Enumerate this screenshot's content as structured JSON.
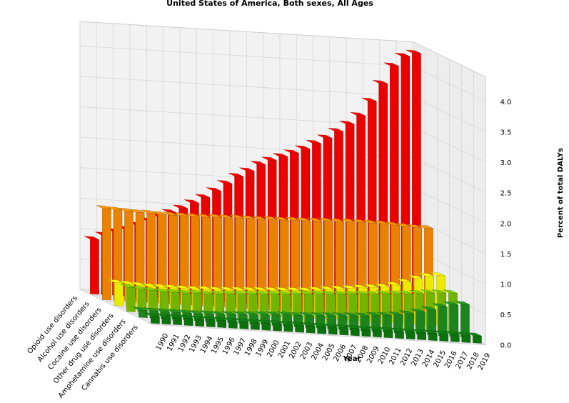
{
  "chart_data": {
    "type": "bar3d",
    "title": "United States of America, Both sexes, All Ages",
    "xlabel": "Year",
    "zlabel": "Percent of total DALYs",
    "zlim": [
      0,
      4.4
    ],
    "zticks": [
      "0.0",
      "0.5",
      "1.0",
      "1.5",
      "2.0",
      "2.5",
      "3.0",
      "3.5",
      "4.0"
    ],
    "categories": [
      "1990",
      "1991",
      "1992",
      "1993",
      "1994",
      "1995",
      "1996",
      "1997",
      "1998",
      "1999",
      "2000",
      "2001",
      "2002",
      "2003",
      "2004",
      "2005",
      "2006",
      "2007",
      "2008",
      "2009",
      "2010",
      "2011",
      "2012",
      "2013",
      "2014",
      "2015",
      "2016",
      "2017",
      "2018",
      "2019"
    ],
    "series": [
      {
        "name": "Opioid use disorders",
        "color": "#ff0000",
        "values": [
          0.9,
          0.98,
          1.05,
          1.1,
          1.18,
          1.26,
          1.34,
          1.42,
          1.5,
          1.6,
          1.7,
          1.82,
          1.95,
          2.08,
          2.18,
          2.3,
          2.38,
          2.45,
          2.52,
          2.6,
          2.7,
          2.8,
          2.92,
          3.05,
          3.2,
          3.45,
          3.75,
          4.05,
          4.22,
          4.28
        ]
      },
      {
        "name": "Alcohol use disorders",
        "color": "#ff8c00",
        "values": [
          1.5,
          1.49,
          1.48,
          1.47,
          1.47,
          1.46,
          1.46,
          1.46,
          1.46,
          1.46,
          1.47,
          1.47,
          1.48,
          1.48,
          1.48,
          1.49,
          1.49,
          1.5,
          1.5,
          1.51,
          1.52,
          1.52,
          1.53,
          1.53,
          1.53,
          1.53,
          1.52,
          1.51,
          1.5,
          1.5
        ]
      },
      {
        "name": "Cocaine use disorders",
        "color": "#ffff00",
        "values": [
          0.38,
          0.37,
          0.36,
          0.35,
          0.35,
          0.35,
          0.35,
          0.35,
          0.36,
          0.36,
          0.37,
          0.38,
          0.39,
          0.4,
          0.41,
          0.42,
          0.43,
          0.44,
          0.46,
          0.48,
          0.5,
          0.52,
          0.54,
          0.56,
          0.58,
          0.62,
          0.68,
          0.75,
          0.8,
          0.82
        ]
      },
      {
        "name": "Other drug use disorders",
        "color": "#7cc400",
        "values": [
          0.4,
          0.38,
          0.37,
          0.36,
          0.36,
          0.36,
          0.37,
          0.37,
          0.38,
          0.39,
          0.4,
          0.41,
          0.42,
          0.43,
          0.44,
          0.45,
          0.47,
          0.48,
          0.49,
          0.5,
          0.51,
          0.52,
          0.53,
          0.55,
          0.56,
          0.57,
          0.59,
          0.61,
          0.62,
          0.63
        ]
      },
      {
        "name": "Amphetamine use disorders",
        "color": "#1f8f1f",
        "values": [
          0.12,
          0.12,
          0.12,
          0.12,
          0.12,
          0.12,
          0.13,
          0.13,
          0.14,
          0.15,
          0.16,
          0.17,
          0.18,
          0.19,
          0.19,
          0.2,
          0.21,
          0.22,
          0.23,
          0.24,
          0.25,
          0.27,
          0.28,
          0.3,
          0.33,
          0.37,
          0.42,
          0.48,
          0.52,
          0.54
        ]
      },
      {
        "name": "Cannabis use disorders",
        "color": "#0d7a0d",
        "values": [
          0.12,
          0.12,
          0.12,
          0.12,
          0.12,
          0.12,
          0.12,
          0.12,
          0.12,
          0.12,
          0.12,
          0.12,
          0.12,
          0.12,
          0.12,
          0.12,
          0.12,
          0.12,
          0.12,
          0.12,
          0.12,
          0.12,
          0.12,
          0.12,
          0.12,
          0.12,
          0.12,
          0.12,
          0.12,
          0.12
        ]
      }
    ]
  }
}
